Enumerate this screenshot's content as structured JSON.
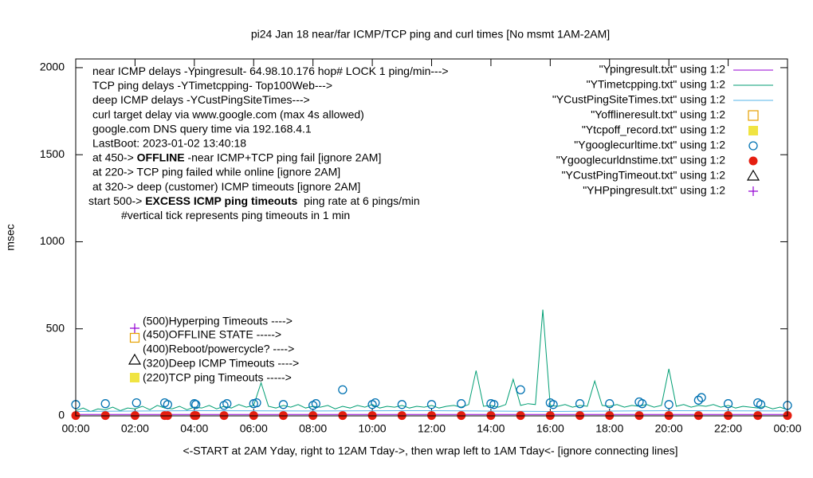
{
  "chart_data": {
    "type": "line",
    "title": "pi24 Jan 18  near/far ICMP/TCP ping and curl times [No msmt 1AM-2AM]",
    "x_label": "<-START at 2AM Yday, right to 12AM Tday->, then wrap left to 1AM Tday<- [ignore connecting lines]",
    "y_label": "msec",
    "notes": [
      [
        "near ICMP delays -Ypingresult- 64.98.10.176 hop# LOCK 1 ping/min--->"
      ],
      [
        "TCP ping delays -YTimetcpping- Top100Web--->"
      ],
      [
        "deep ICMP delays -YCustPingSiteTimes--->"
      ],
      [
        "curl target delay via www.google.com (max 4s allowed)"
      ],
      [
        "google.com DNS query time via 192.168.4.1"
      ],
      [
        "LastBoot: 2023-01-02 13:40:18"
      ],
      [
        "at 450-> ",
        "OFFLINE",
        " -near ICMP+TCP ping fail [ignore 2AM]"
      ],
      [
        "at 220-> TCP ping failed while online [ignore 2AM]"
      ],
      [
        "at 320-> deep (customer) ICMP timeouts [ignore 2AM]"
      ],
      [
        "start 500-> ",
        "EXCESS ICMP ping timeouts",
        "  ping rate at 6 pings/min"
      ],
      [
        "#vertical tick represents ping timeouts in 1 min"
      ]
    ],
    "key_notes": [
      "(500)Hyperping Timeouts ---->",
      "(450)OFFLINE STATE ----->",
      "(400)Reboot/powercycle? ---->",
      "(320)Deep ICMP Timeouts ---->",
      "(220)TCP ping Timeouts ----->"
    ],
    "xlim": [
      0,
      24
    ],
    "ylim": [
      0,
      2050
    ],
    "xticks": [
      {
        "value": 0,
        "label": "00:00"
      },
      {
        "value": 2,
        "label": "02:00"
      },
      {
        "value": 4,
        "label": "04:00"
      },
      {
        "value": 6,
        "label": "06:00"
      },
      {
        "value": 8,
        "label": "08:00"
      },
      {
        "value": 10,
        "label": "10:00"
      },
      {
        "value": 12,
        "label": "12:00"
      },
      {
        "value": 14,
        "label": "14:00"
      },
      {
        "value": 16,
        "label": "16:00"
      },
      {
        "value": 18,
        "label": "18:00"
      },
      {
        "value": 20,
        "label": "20:00"
      },
      {
        "value": 22,
        "label": "22:00"
      },
      {
        "value": 24,
        "label": "00:00"
      }
    ],
    "yticks": [
      0,
      500,
      1000,
      1500,
      2000
    ],
    "series": [
      {
        "name": "\"Ypingresult.txt\" using 1:2",
        "color": "#9400d3",
        "style": "line",
        "x": [
          0,
          6,
          12,
          18,
          24
        ],
        "values": [
          8,
          8,
          8,
          8,
          8
        ]
      },
      {
        "name": "\"YTimetcpping.txt\" using 1:2",
        "color": "#009e73",
        "style": "line",
        "x": [
          0,
          0.25,
          0.5,
          0.75,
          1,
          1.25,
          1.5,
          1.75,
          2,
          2.25,
          2.5,
          2.75,
          3,
          3.25,
          3.5,
          3.75,
          4,
          4.25,
          4.5,
          4.75,
          5,
          5.25,
          5.5,
          5.75,
          6,
          6.25,
          6.5,
          6.75,
          7,
          7.25,
          7.5,
          7.75,
          8,
          8.25,
          8.5,
          8.75,
          9,
          9.25,
          9.5,
          9.75,
          10,
          10.25,
          10.5,
          10.75,
          11,
          11.25,
          11.5,
          11.75,
          12,
          12.25,
          12.5,
          12.75,
          13,
          13.25,
          13.5,
          13.75,
          14,
          14.25,
          14.5,
          14.75,
          15,
          15.25,
          15.5,
          15.75,
          16,
          16.25,
          16.5,
          16.75,
          17,
          17.25,
          17.5,
          17.75,
          18,
          18.25,
          18.5,
          18.75,
          19,
          19.25,
          19.5,
          19.75,
          20,
          20.25,
          20.5,
          20.75,
          21,
          21.25,
          21.5,
          21.75,
          22,
          22.25,
          22.5,
          22.75,
          23,
          23.25,
          23.5,
          23.75,
          24
        ],
        "values": [
          30,
          45,
          25,
          40,
          35,
          50,
          30,
          45,
          40,
          55,
          35,
          60,
          45,
          40,
          55,
          35,
          50,
          45,
          60,
          40,
          55,
          45,
          65,
          50,
          60,
          190,
          55,
          45,
          60,
          50,
          65,
          45,
          55,
          50,
          60,
          40,
          55,
          45,
          60,
          50,
          65,
          45,
          55,
          50,
          60,
          45,
          55,
          50,
          60,
          45,
          55,
          60,
          50,
          65,
          260,
          55,
          60,
          50,
          65,
          210,
          60,
          70,
          65,
          610,
          60,
          55,
          65,
          50,
          60,
          55,
          200,
          60,
          55,
          65,
          50,
          60,
          55,
          65,
          50,
          60,
          270,
          55,
          65,
          50,
          60,
          55,
          65,
          50,
          60,
          45,
          55,
          50,
          45,
          55,
          40,
          50,
          35
        ]
      },
      {
        "name": "\"YCustPingSiteTimes.txt\" using 1:2",
        "color": "#56b4e9",
        "style": "line",
        "x": [
          0,
          4,
          8,
          12,
          16,
          20,
          24
        ],
        "values": [
          25,
          30,
          28,
          30,
          25,
          30,
          28
        ]
      },
      {
        "name": "\"Yofflineresult.txt\" using 1:2",
        "color": "#e69f00",
        "style": "point",
        "marker": "square-open",
        "x": [],
        "values": []
      },
      {
        "name": "\"Ytcpoff_record.txt\" using 1:2",
        "color": "#f0e442",
        "style": "point",
        "marker": "square-filled",
        "x": [],
        "values": []
      },
      {
        "name": "\"Ygooglecurltime.txt\" using 1:2",
        "color": "#0072b2",
        "style": "point",
        "marker": "circle-open",
        "x": [
          0,
          1,
          2.05,
          3,
          3.1,
          4,
          4.05,
          5,
          5.1,
          6,
          6.1,
          7,
          8,
          8.1,
          9,
          10,
          10.1,
          11,
          12,
          13,
          14,
          14.1,
          15,
          16,
          16.1,
          17,
          18,
          19,
          19.1,
          20,
          21,
          21.1,
          22,
          23,
          23.1,
          24
        ],
        "values": [
          65,
          70,
          75,
          75,
          65,
          70,
          65,
          60,
          70,
          70,
          75,
          65,
          60,
          70,
          150,
          65,
          75,
          65,
          65,
          70,
          70,
          65,
          150,
          75,
          65,
          70,
          70,
          80,
          70,
          65,
          90,
          105,
          70,
          75,
          65,
          60
        ]
      },
      {
        "name": "\"Ygooglecurldnstime.txt\" using 1:2",
        "color": "#e51e10",
        "style": "point",
        "marker": "circle-filled",
        "x": [
          0,
          1,
          2,
          3,
          3.1,
          4,
          4.05,
          5,
          6,
          7,
          8,
          9,
          10,
          11,
          12,
          13,
          14,
          15,
          16,
          17,
          18,
          19,
          20,
          21,
          22,
          23,
          24
        ],
        "values": [
          2,
          2,
          2,
          2,
          2,
          2,
          2,
          2,
          2,
          2,
          2,
          2,
          2,
          2,
          2,
          2,
          2,
          2,
          2,
          2,
          2,
          2,
          2,
          2,
          2,
          2,
          2
        ]
      },
      {
        "name": "\"YCustPingTimeout.txt\" using 1:2",
        "color": "#000000",
        "style": "point",
        "marker": "triangle-open",
        "x": [],
        "values": []
      },
      {
        "name": "\"YHPpingresult.txt\" using 1:2",
        "color": "#9400d3",
        "style": "point",
        "marker": "plus",
        "x": [],
        "values": []
      }
    ]
  }
}
